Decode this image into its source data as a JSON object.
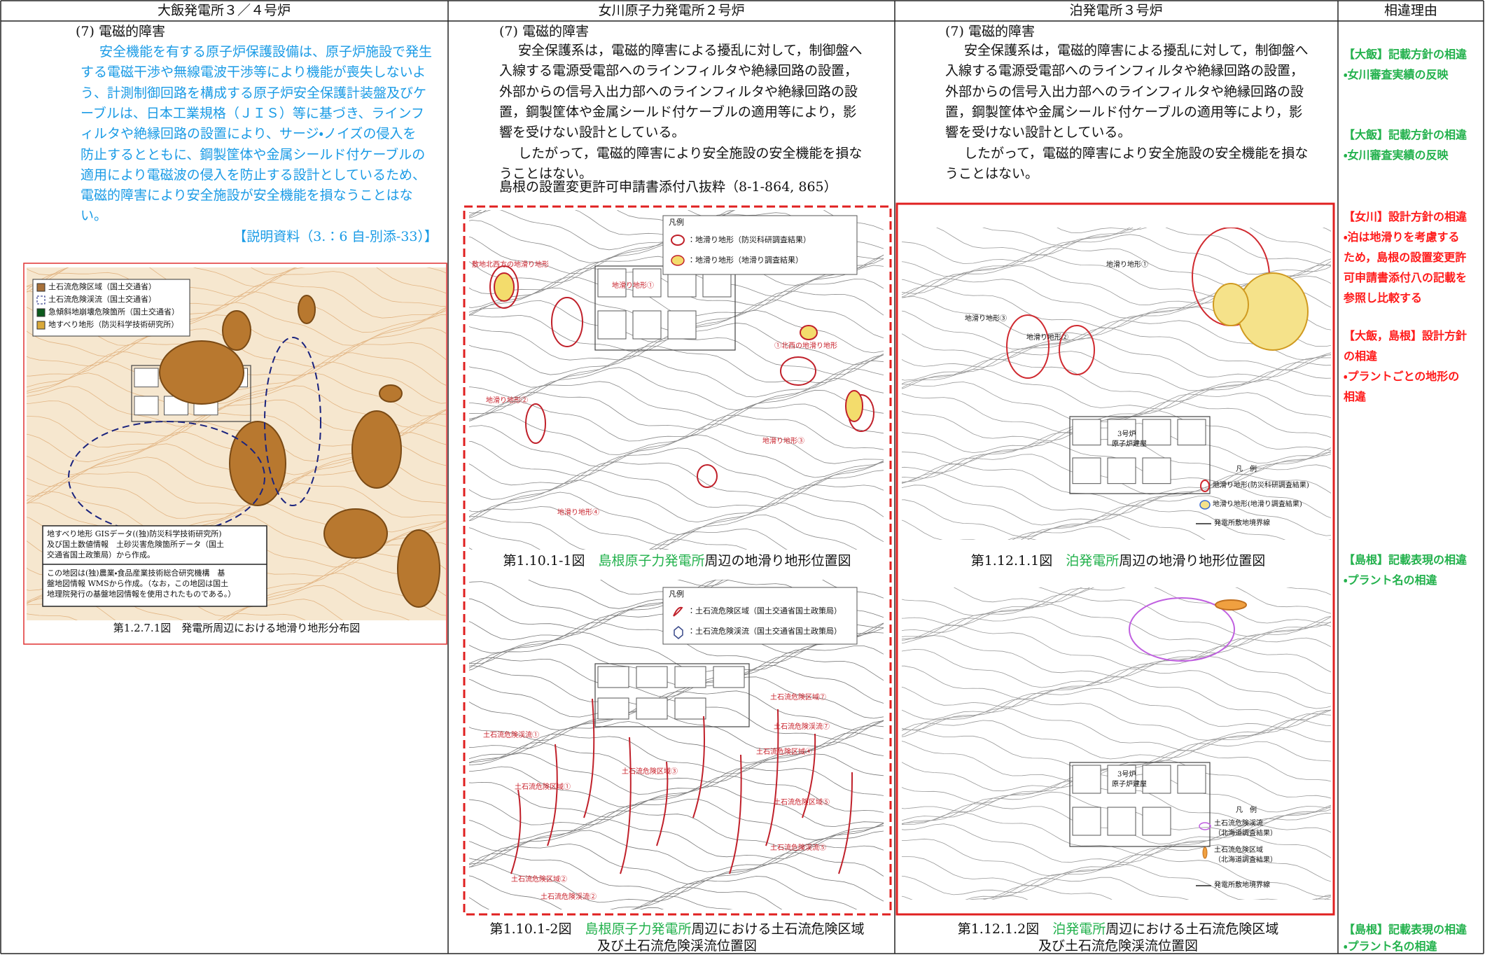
{
  "header": [
    "大飯発電所３／４号炉",
    "女川原子力発電所２号炉",
    "泊発電所３号炉",
    "相違理由"
  ],
  "ohi": {
    "heading": "(7) 電磁的障害",
    "paragraphs": [
      [
        "安全機能を有する原子炉保護設備は、原子炉施設で発生",
        "する電磁干渉や無線電波干渉等により機能が喪失しないよ",
        "う、計測制御回路を構成する原子炉安全保護計装盤及びケ",
        "ーブルは、日本工業規格（ＪＩＳ）等に基づき、ラインフ",
        "ィルタや絶縁回路の設置により、サージ・ノイズの侵入を",
        "防止するとともに、鋼製筐体や金属シールド付ケーブルの",
        "適用により電磁波の侵入を防止する設計としているため、",
        "電磁的障害により安全施設が安全機能を損なうことはな",
        "い。"
      ]
    ],
    "reference": "【説明資料（3.：6 自-別添-33）】",
    "figure": {
      "legend": [
        "土石流危険区域（国土交通省）",
        "土石流危険渓流（国土交通省）",
        "急傾斜地崩壊危険箇所（国土交通省）",
        "地すべり地形（防災科学技術研究所）"
      ],
      "notes": [
        [
          "地すべり地形 GISデータ((独)防災科学技術研究所)",
          "及び国土数値情報　土砂災害危険箇所データ（国土",
          "交通省国土政策局）から作成。"
        ],
        [
          "この地図は(独)農業・食品産業技術総合研究機構　基",
          "盤地図情報 WMSから作成。（なお，この地図は国土",
          "地理院発行の基盤地図情報を使用されたものである。）"
        ]
      ],
      "caption": "第1.2.7.1図　発電所周辺における地滑り地形分布図"
    }
  },
  "onagawa": {
    "heading": "(7) 電磁的障害",
    "paragraphs": [
      [
        "安全保護系は，電磁的障害による擾乱に対して，制御盤へ",
        "入線する電源受電部へのラインフィルタや絶縁回路の設置，",
        "外部からの信号入出力部へのラインフィルタや絶縁回路の設",
        "置，鋼製筐体や金属シールド付ケーブルの適用等により，影",
        "響を受けない設計としている。"
      ],
      [
        "したがって，電磁的障害により安全施設の安全機能を損な",
        "うことはない。"
      ]
    ],
    "source": "島根の設置変更許可申請書添付八抜粋（8-1-864, 865）",
    "figure1": {
      "legend_title": "凡例",
      "legend": [
        "：地滑り地形（防災科研調査結果）",
        "：地滑り地形（地滑り調査結果）"
      ],
      "labels": [
        "敷地北西方の地滑り地形",
        "地滑り地形①",
        "①北西の地滑り地形",
        "地滑り地形②",
        "地滑り地形③",
        "地滑り地形④"
      ],
      "caption": [
        "第1.10.1-1図　",
        "島根原子力発電所",
        "周辺の地滑り地形位置図"
      ]
    },
    "figure2": {
      "legend_title": "凡例",
      "legend": [
        "：土石流危険区域（国土交通省国土政策局）",
        "：土石流危険渓流（国土交通省国土政策局）"
      ],
      "labels": [
        "土石流危険区域⑦",
        "土石流危険渓流⑦",
        "土石流危険区域④",
        "土石流危険区域③",
        "土石流危険渓流①",
        "土石流危険区域①",
        "土石流危険区域②",
        "土石流危険渓流②",
        "土石流危険区域⑤",
        "土石流危険渓流⑤"
      ],
      "caption": [
        "第1.10.1-2図　",
        "島根原子力発電所",
        "周辺における土石流危険区域",
        "及び土石流危険渓流位置図"
      ]
    }
  },
  "tomari": {
    "heading": "(7) 電磁的障害",
    "paragraphs": [
      [
        "安全保護系は，電磁的障害による擾乱に対して，制御盤へ",
        "入線する電源受電部へのラインフィルタや絶縁回路の設置，",
        "外部からの信号入出力部へのラインフィルタや絶縁回路の設",
        "置，鋼製筐体や金属シールド付ケーブルの適用等により，影",
        "響を受けない設計としている。"
      ],
      [
        "したがって，電磁的障害により安全施設の安全機能を損な",
        "うことはない。"
      ]
    ],
    "figure1": {
      "labels": [
        "地滑り地形①",
        "地滑り地形③",
        "地滑り地形②",
        "3号炉",
        "原子炉建屋"
      ],
      "legend_title": "凡　例",
      "legend": [
        "地滑り地形(防災科研調査結果)",
        "地滑り地形(地滑り調査結果)",
        "発電所敷地境界線"
      ],
      "caption": [
        "第1.12.1.1図　",
        "泊発電所",
        "周辺の地滑り地形位置図"
      ]
    },
    "figure2": {
      "labels": [
        "3号炉",
        "原子炉建屋"
      ],
      "legend_title": "凡　例",
      "legend": [
        "土石流危険渓流",
        "（北海道調査結果）",
        "土石流危険区域",
        "（北海道調査結果）",
        "発電所敷地境界線"
      ],
      "caption": [
        "第1.12.1.2図　",
        "泊発電所",
        "周辺における土石流危険区域",
        "及び土石流危険渓流位置図"
      ]
    }
  },
  "reasons": [
    {
      "color": "#22b14c",
      "lines": [
        "【大飯】記載方針の相違",
        "・女川審査実績の反映"
      ]
    },
    {
      "color": "#22b14c",
      "lines": [
        "【大飯】記載方針の相違",
        "・女川審査実績の反映"
      ]
    },
    {
      "color": "#ff1a1a",
      "lines": [
        "【女川】設計方針の相違",
        "・泊は地滑りを考慮する",
        "ため，島根の設置変更許",
        "可申請書添付八の記載を",
        "参照し比較する"
      ]
    },
    {
      "color": "#ff1a1a",
      "lines": [
        "【大飯，島根】設計方針",
        "の相違",
        "・プラントごとの地形の",
        "相違"
      ]
    },
    {
      "color": "#22b14c",
      "lines": [
        "【島根】記載表現の相違",
        "・プラント名の相違"
      ]
    },
    {
      "color": "#22b14c",
      "lines": [
        "【島根】記載表現の相違",
        "・プラント名の相違"
      ]
    }
  ]
}
